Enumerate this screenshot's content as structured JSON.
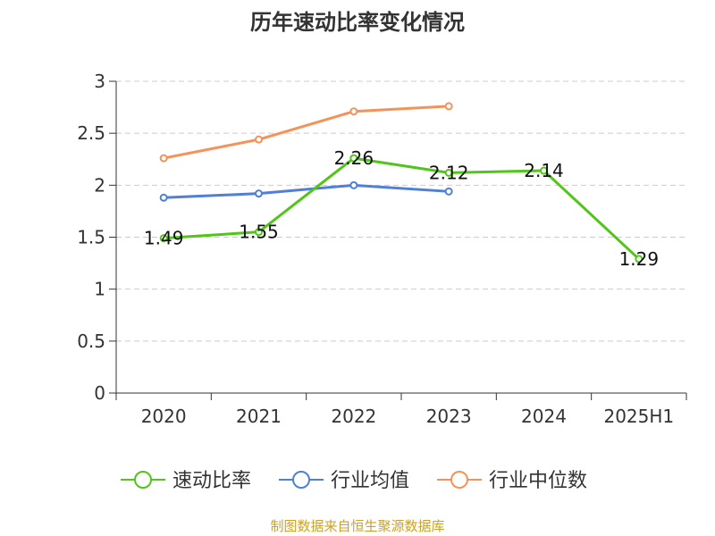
{
  "chart_data": {
    "type": "line",
    "title": "历年速动比率变化情况",
    "categories": [
      "2020",
      "2021",
      "2022",
      "2023",
      "2024",
      "2025H1"
    ],
    "ylim": [
      0,
      3
    ],
    "yticks": [
      "0",
      "0.5",
      "1",
      "1.5",
      "2",
      "2.5",
      "3"
    ],
    "grid": true,
    "legend_position": "bottom",
    "series": [
      {
        "name": "速动比率",
        "color": "#52c41a",
        "values": [
          1.49,
          1.55,
          2.26,
          2.12,
          2.14,
          1.29
        ],
        "labels": [
          "1.49",
          "1.55",
          "2.26",
          "2.12",
          "2.14",
          "1.29"
        ]
      },
      {
        "name": "行业均值",
        "color": "#4f7fd8",
        "values": [
          1.88,
          1.92,
          2.0,
          1.94,
          null,
          null
        ]
      },
      {
        "name": "行业中位数",
        "color": "#f5925a",
        "values": [
          2.26,
          2.44,
          2.71,
          2.76,
          null,
          null
        ]
      }
    ]
  },
  "source": {
    "text": "制图数据来自恒生聚源数据库",
    "color": "#c9a227"
  }
}
